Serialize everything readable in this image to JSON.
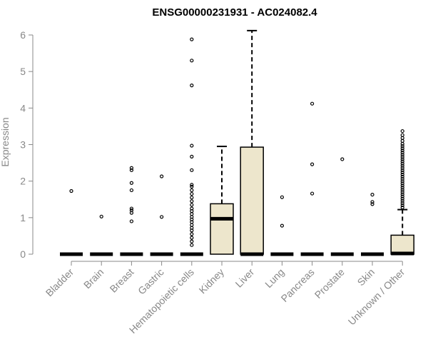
{
  "chart_data": {
    "type": "box",
    "title": "ENSG00000231931 - AC024082.4",
    "xlabel": "",
    "ylabel": "Expression",
    "ylim": [
      0,
      6
    ],
    "yticks": [
      0,
      1,
      2,
      3,
      4,
      5,
      6
    ],
    "box_fill": "#ede6cc",
    "categories": [
      "Bladder",
      "Brain",
      "Breast",
      "Gastric",
      "Hematopoietic cells",
      "Kidney",
      "Liver",
      "Lung",
      "Pancreas",
      "Prostate",
      "Skin",
      "Unknown / Other"
    ],
    "boxes": [
      {
        "q1": 0,
        "median": 0,
        "q3": 0,
        "whisker_low": 0,
        "whisker_high": 0,
        "outliers": [
          1.73
        ]
      },
      {
        "q1": 0,
        "median": 0,
        "q3": 0,
        "whisker_low": 0,
        "whisker_high": 0,
        "outliers": [
          1.03
        ]
      },
      {
        "q1": 0,
        "median": 0,
        "q3": 0,
        "whisker_low": 0,
        "whisker_high": 0,
        "outliers": [
          0.9,
          1.13,
          1.2,
          1.25,
          1.75,
          1.95,
          2.3,
          2.36
        ]
      },
      {
        "q1": 0,
        "median": 0,
        "q3": 0,
        "whisker_low": 0,
        "whisker_high": 0,
        "outliers": [
          1.02,
          2.13
        ]
      },
      {
        "q1": 0,
        "median": 0,
        "q3": 0,
        "whisker_low": 0,
        "whisker_high": 0,
        "outliers": [
          0.25,
          0.35,
          0.45,
          0.55,
          0.65,
          0.72,
          0.8,
          0.88,
          0.95,
          1.02,
          1.1,
          1.18,
          1.25,
          1.35,
          1.45,
          1.55,
          1.65,
          1.75,
          1.85,
          1.9,
          2.3,
          2.67,
          2.97,
          4.62,
          5.3,
          5.88
        ]
      },
      {
        "q1": 0,
        "median": 0.97,
        "q3": 1.38,
        "whisker_low": 0,
        "whisker_high": 2.95,
        "outliers": []
      },
      {
        "q1": 0,
        "median": 0,
        "q3": 2.93,
        "whisker_low": 0,
        "whisker_high": 6.12,
        "outliers": []
      },
      {
        "q1": 0,
        "median": 0,
        "q3": 0,
        "whisker_low": 0,
        "whisker_high": 0,
        "outliers": [
          0.78,
          1.56
        ]
      },
      {
        "q1": 0,
        "median": 0,
        "q3": 0,
        "whisker_low": 0,
        "whisker_high": 0,
        "outliers": [
          1.66,
          2.46,
          4.12
        ]
      },
      {
        "q1": 0,
        "median": 0,
        "q3": 0,
        "whisker_low": 0,
        "whisker_high": 0,
        "outliers": [
          2.6
        ]
      },
      {
        "q1": 0,
        "median": 0,
        "q3": 0,
        "whisker_low": 0,
        "whisker_high": 0,
        "outliers": [
          1.37,
          1.43,
          1.63
        ]
      },
      {
        "q1": 0,
        "median": 0.02,
        "q3": 0.52,
        "whisker_low": 0,
        "whisker_high": 1.22,
        "outliers": [
          1.28,
          1.34,
          1.4,
          1.46,
          1.52,
          1.58,
          1.64,
          1.7,
          1.76,
          1.82,
          1.88,
          1.94,
          2.0,
          2.06,
          2.12,
          2.18,
          2.24,
          2.3,
          2.36,
          2.42,
          2.48,
          2.54,
          2.6,
          2.66,
          2.72,
          2.78,
          2.84,
          2.9,
          2.96,
          3.02,
          3.1,
          3.18,
          3.26,
          3.37
        ]
      }
    ]
  }
}
